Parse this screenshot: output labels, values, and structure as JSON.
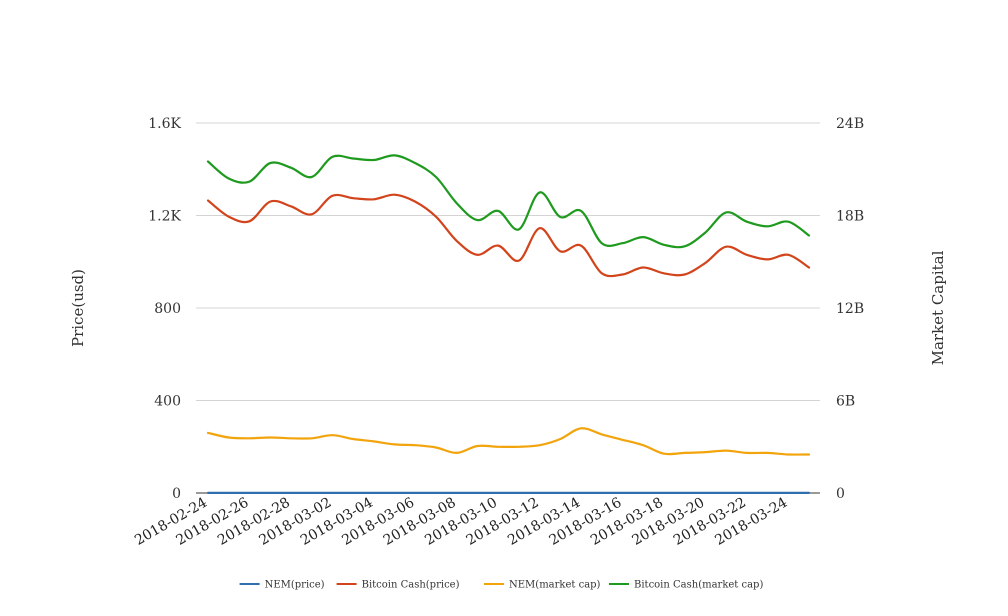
{
  "chart_data": {
    "type": "line",
    "title": "",
    "y_left_label": "Price(usd)",
    "y_right_label": "Market Capital",
    "y_left_ticks": [
      "0",
      "400",
      "800",
      "1.2K",
      "1.6K"
    ],
    "y_left_range": [
      0,
      1600
    ],
    "y_right_ticks": [
      "0",
      "6B",
      "12B",
      "18B",
      "24B"
    ],
    "y_right_range": [
      0,
      24000000000
    ],
    "grid": true,
    "legend_position": "bottom",
    "x": [
      "2018-02-24",
      "2018-02-25",
      "2018-02-26",
      "2018-02-27",
      "2018-02-28",
      "2018-03-01",
      "2018-03-02",
      "2018-03-03",
      "2018-03-04",
      "2018-03-05",
      "2018-03-06",
      "2018-03-07",
      "2018-03-08",
      "2018-03-09",
      "2018-03-10",
      "2018-03-11",
      "2018-03-12",
      "2018-03-13",
      "2018-03-14",
      "2018-03-15",
      "2018-03-16",
      "2018-03-17",
      "2018-03-18",
      "2018-03-19",
      "2018-03-20",
      "2018-03-21",
      "2018-03-22",
      "2018-03-23",
      "2018-03-24",
      "2018-03-25"
    ],
    "x_tick_labels": [
      "2018-02-24",
      "2018-02-26",
      "2018-02-28",
      "2018-03-02",
      "2018-03-04",
      "2018-03-06",
      "2018-03-08",
      "2018-03-10",
      "2018-03-12",
      "2018-03-14",
      "2018-03-16",
      "2018-03-18",
      "2018-03-20",
      "2018-03-22",
      "2018-03-24"
    ],
    "series": [
      {
        "name": "NEM(price)",
        "axis": "left",
        "color": "#2f6fb0",
        "values": [
          0.42,
          0.4,
          0.39,
          0.4,
          0.4,
          0.39,
          0.41,
          0.38,
          0.37,
          0.36,
          0.35,
          0.33,
          0.3,
          0.33,
          0.33,
          0.33,
          0.34,
          0.37,
          0.46,
          0.42,
          0.38,
          0.35,
          0.29,
          0.3,
          0.31,
          0.3,
          0.29,
          0.29,
          0.28,
          0.28
        ]
      },
      {
        "name": "Bitcoin Cash(price)",
        "axis": "left",
        "color": "#d2441b",
        "values": [
          1265,
          1195,
          1175,
          1260,
          1240,
          1205,
          1285,
          1275,
          1270,
          1290,
          1260,
          1195,
          1090,
          1030,
          1070,
          1005,
          1145,
          1045,
          1070,
          950,
          945,
          975,
          950,
          945,
          995,
          1065,
          1030,
          1010,
          1030,
          975
        ]
      },
      {
        "name": "NEM(market cap)",
        "axis": "right",
        "color": "#f2a40d",
        "values": [
          3900000000,
          3600000000,
          3550000000,
          3600000000,
          3550000000,
          3550000000,
          3750000000,
          3500000000,
          3350000000,
          3150000000,
          3100000000,
          2950000000,
          2600000000,
          3050000000,
          3000000000,
          3000000000,
          3100000000,
          3500000000,
          4200000000,
          3800000000,
          3450000000,
          3100000000,
          2550000000,
          2600000000,
          2650000000,
          2750000000,
          2600000000,
          2600000000,
          2500000000,
          2500000000
        ]
      },
      {
        "name": "Bitcoin Cash(market cap)",
        "axis": "right",
        "color": "#1e9a1e",
        "values": [
          21500000000,
          20400000000,
          20200000000,
          21400000000,
          21100000000,
          20500000000,
          21800000000,
          21700000000,
          21600000000,
          21900000000,
          21400000000,
          20500000000,
          18800000000,
          17700000000,
          18300000000,
          17100000000,
          19500000000,
          17900000000,
          18300000000,
          16200000000,
          16200000000,
          16600000000,
          16100000000,
          16000000000,
          16900000000,
          18200000000,
          17600000000,
          17300000000,
          17600000000,
          16700000000
        ]
      }
    ]
  }
}
